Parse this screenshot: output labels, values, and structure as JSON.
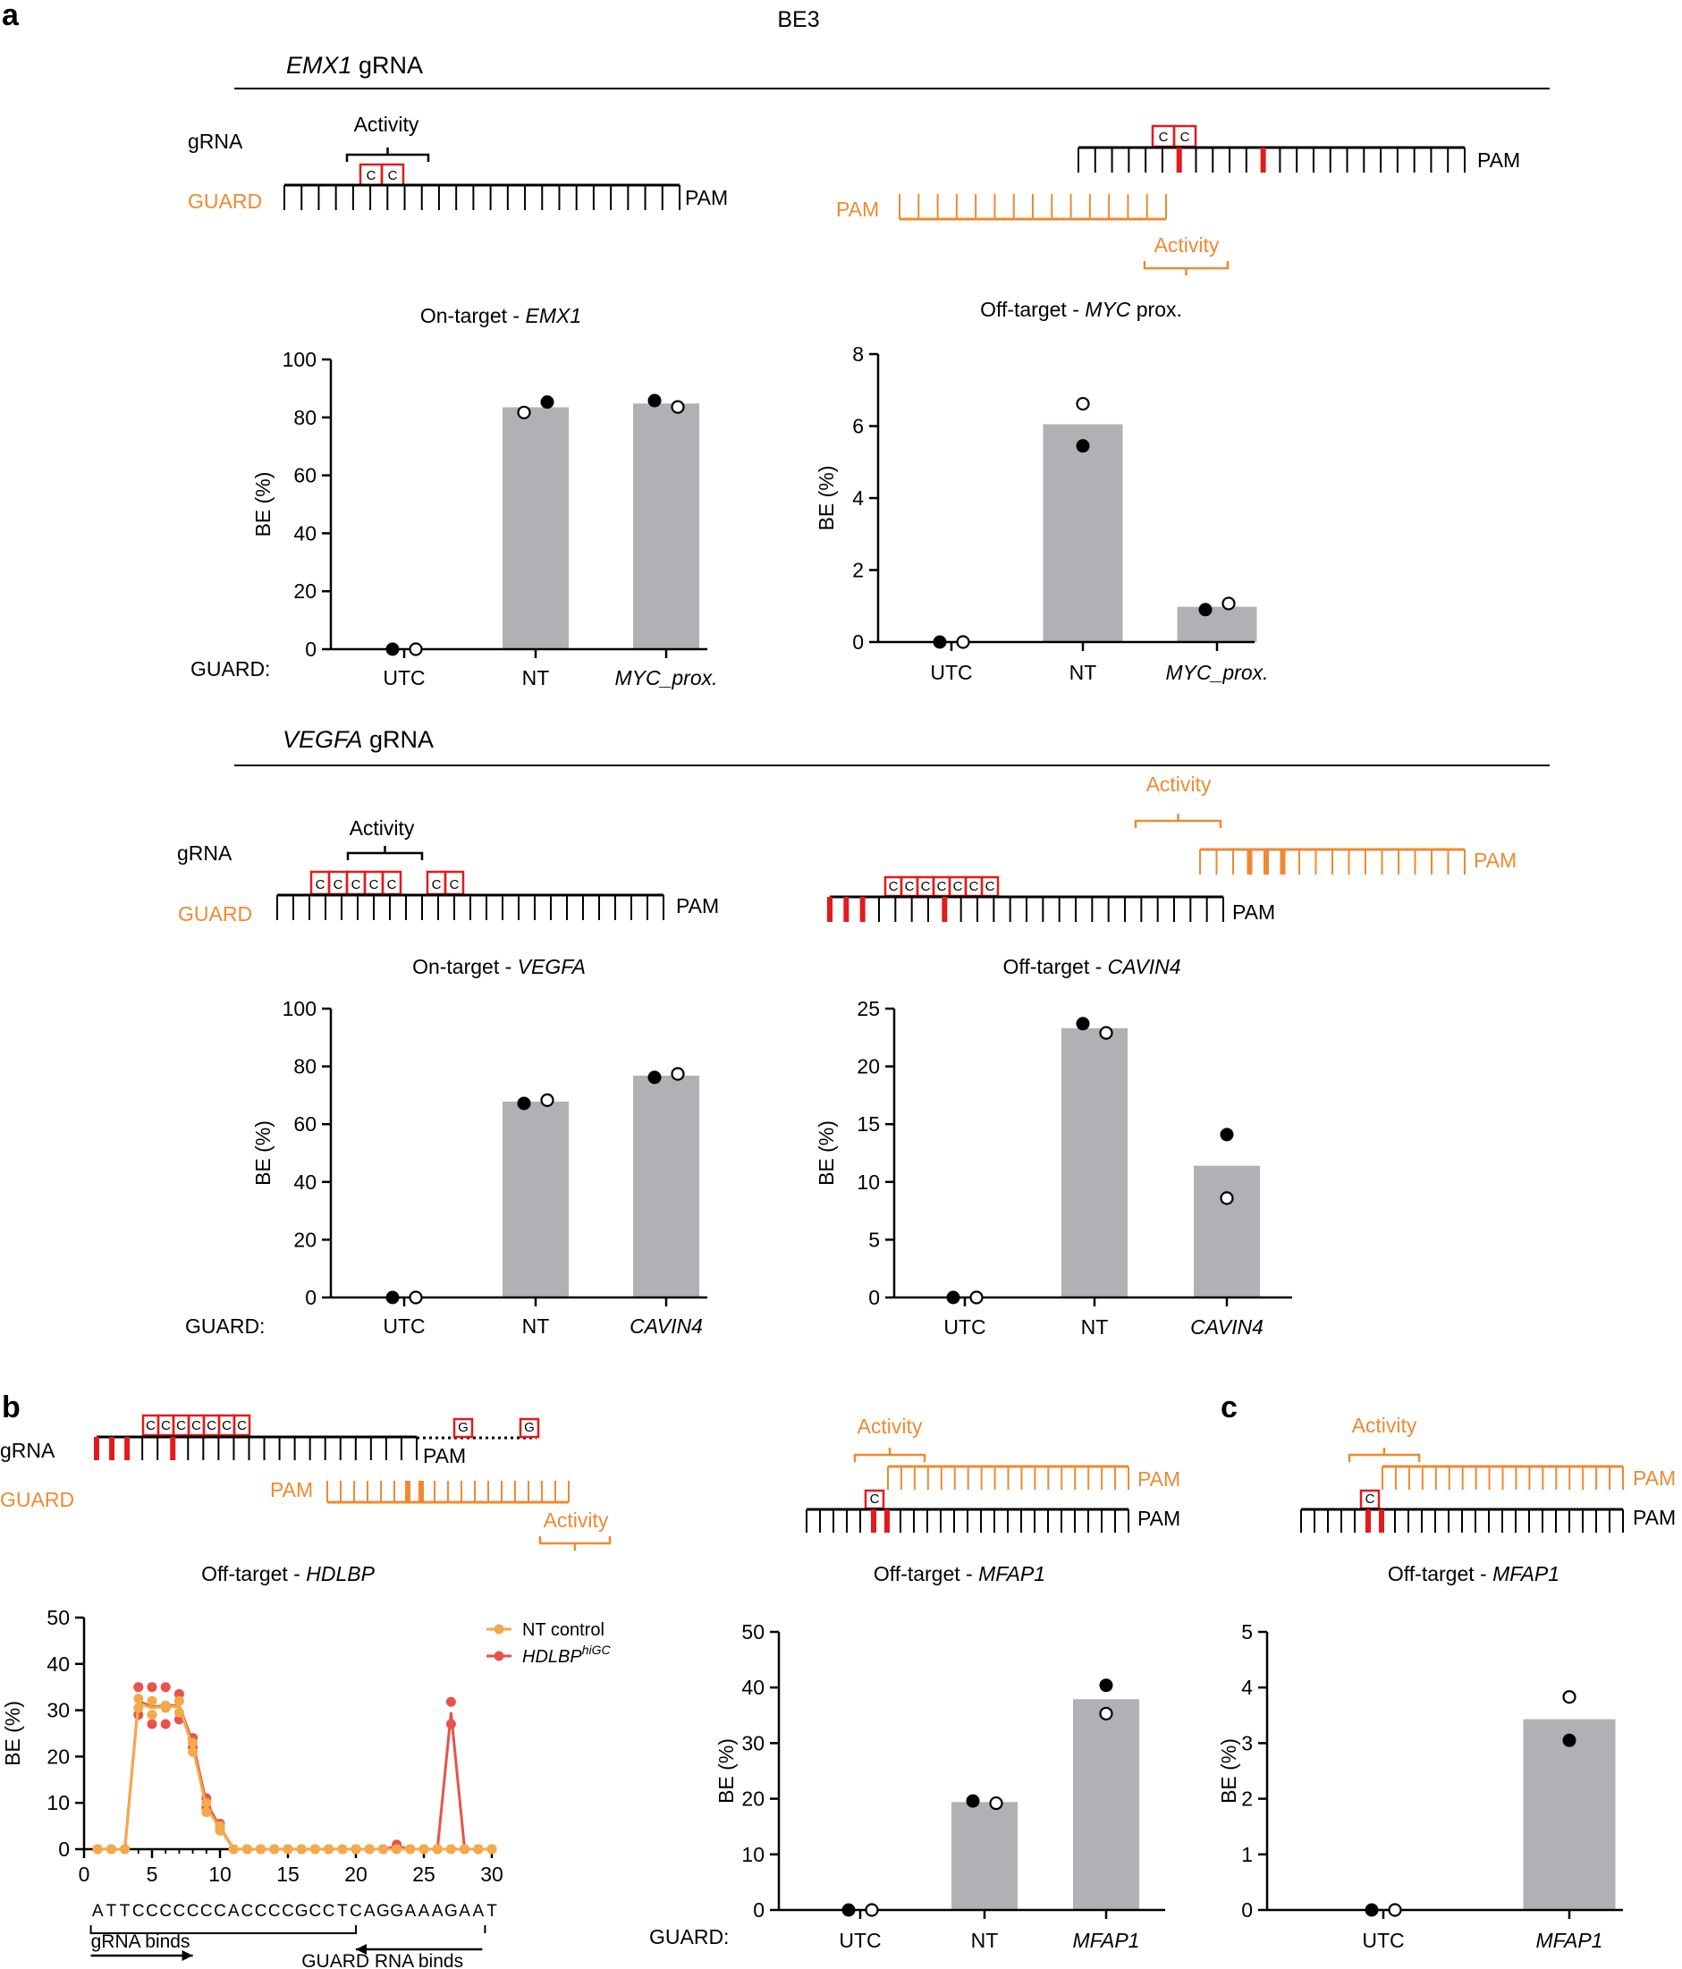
{
  "figure": {
    "top_title": "BE3",
    "panel_labels": {
      "a": "a",
      "b": "b",
      "c": "c"
    },
    "colors": {
      "black": "#000000",
      "red": "#e31a1c",
      "orange": "#ee8a33",
      "bar": "#b0b0b5",
      "nt_line": "#f4a94a",
      "hd_line": "#e8524a"
    }
  },
  "sections": {
    "emx1": {
      "gene": "EMX1",
      "suffix": " gRNA"
    },
    "vegfa": {
      "gene": "VEGFA",
      "suffix": " gRNA"
    }
  },
  "schematics": {
    "gRNA": "gRNA",
    "guard": "GUARD",
    "pam": "PAM",
    "activity": "Activity",
    "c": "C",
    "g": "G"
  },
  "chart_data": [
    {
      "id": "emx1_on",
      "type": "bar",
      "title_prefix": "On-target - ",
      "title_gene": "EMX1",
      "title_suffix": "",
      "ylabel": "BE (%)",
      "xgroup_label": "GUARD:",
      "categories": [
        "UTC",
        "NT",
        "MYC_prox."
      ],
      "category_italic": [
        false,
        false,
        true
      ],
      "values": [
        0,
        83.5,
        84.8
      ],
      "points_filled": [
        0,
        85.3,
        85.8
      ],
      "points_open": [
        0,
        81.7,
        83.6
      ],
      "ylim": [
        0,
        100
      ],
      "yticks": [
        0,
        20,
        40,
        60,
        80,
        100
      ],
      "ytick_labels": [
        "0",
        "20",
        "40",
        "60",
        "80",
        "100"
      ]
    },
    {
      "id": "myc_off",
      "type": "bar",
      "title_prefix": "Off-target - ",
      "title_gene": "MYC",
      "title_suffix": " prox.",
      "ylabel": "BE (%)",
      "xgroup_label": "",
      "categories": [
        "UTC",
        "NT",
        "MYC_prox."
      ],
      "category_italic": [
        false,
        false,
        true
      ],
      "values": [
        0,
        6.05,
        0.98
      ],
      "points_filled": [
        0,
        5.45,
        0.9
      ],
      "points_open": [
        0,
        6.62,
        1.07
      ],
      "ylim": [
        0,
        8
      ],
      "yticks": [
        0,
        2,
        4,
        6,
        8
      ],
      "ytick_labels": [
        "0",
        "2",
        "4",
        "6",
        "8"
      ]
    },
    {
      "id": "vegfa_on",
      "type": "bar",
      "title_prefix": "On-target - ",
      "title_gene": "VEGFA",
      "title_suffix": "",
      "ylabel": "BE (%)",
      "xgroup_label": "GUARD:",
      "categories": [
        "UTC",
        "NT",
        "CAVIN4"
      ],
      "category_italic": [
        false,
        false,
        true
      ],
      "values": [
        0,
        67.8,
        76.8
      ],
      "points_filled": [
        0,
        67.2,
        76.2
      ],
      "points_open": [
        0,
        68.3,
        77.4
      ],
      "ylim": [
        0,
        100
      ],
      "yticks": [
        0,
        20,
        40,
        60,
        80,
        100
      ],
      "ytick_labels": [
        "0",
        "20",
        "40",
        "60",
        "80",
        "100"
      ]
    },
    {
      "id": "cavin4_off",
      "type": "bar",
      "title_prefix": "Off-target - ",
      "title_gene": "CAVIN4",
      "title_suffix": "",
      "ylabel": "BE (%)",
      "xgroup_label": "",
      "categories": [
        "UTC",
        "NT",
        "CAVIN4"
      ],
      "category_italic": [
        false,
        false,
        true
      ],
      "values": [
        0,
        23.3,
        11.4
      ],
      "points_filled": [
        0,
        23.7,
        14.1
      ],
      "points_open": [
        0,
        22.9,
        8.6
      ],
      "ylim": [
        0,
        25
      ],
      "yticks": [
        0,
        5,
        10,
        15,
        20,
        25
      ],
      "ytick_labels": [
        "0",
        "5",
        "10",
        "15",
        "20",
        "25"
      ]
    },
    {
      "id": "hdlbp_off",
      "type": "line",
      "title_prefix": "Off-target - ",
      "title_gene": "HDLBP",
      "title_suffix": "",
      "ylabel": "BE (%)",
      "xlim": [
        0,
        30
      ],
      "xticks": [
        0,
        5,
        10,
        15,
        20,
        25,
        30
      ],
      "xtick_labels": [
        "0",
        "5",
        "10",
        "15",
        "20",
        "25",
        "30"
      ],
      "ylim": [
        0,
        50
      ],
      "yticks": [
        0,
        10,
        20,
        30,
        40,
        50
      ],
      "ytick_labels": [
        "0",
        "10",
        "20",
        "30",
        "40",
        "50"
      ],
      "sequence": "ATTCCCCCCCACCCCGCCTCAGGAAAGAAT",
      "gRNA_binds": "gRNA binds",
      "guard_binds": "GUARD RNA binds",
      "series": [
        {
          "name": "NT control",
          "name_base": "NT control",
          "name_sup": "",
          "x": [
            1,
            2,
            3,
            4,
            5,
            6,
            7,
            8,
            9,
            10,
            11,
            12,
            13,
            14,
            15,
            16,
            17,
            18,
            19,
            20,
            21,
            22,
            23,
            24,
            25,
            26,
            27,
            28,
            29,
            30
          ],
          "values": [
            0,
            0,
            0,
            31.5,
            30.5,
            30.8,
            30.8,
            22,
            9,
            4.5,
            0,
            0,
            0,
            0,
            0,
            0,
            0,
            0,
            0,
            0,
            0,
            0,
            0,
            0,
            0,
            0,
            0,
            0,
            0,
            0
          ],
          "replicates": [
            [
              0,
              0,
              0,
              32.5,
              32,
              31,
              32,
              23,
              10,
              5,
              0,
              0,
              0,
              0,
              0,
              0,
              0,
              0,
              0,
              0,
              0,
              0,
              0,
              0,
              0,
              0,
              0,
              0,
              0,
              0
            ],
            [
              0,
              0,
              0,
              30.5,
              29,
              30.5,
              29.5,
              21,
              8,
              4,
              0,
              0,
              0,
              0,
              0,
              0,
              0,
              0,
              0,
              0,
              0,
              0,
              0,
              0,
              0,
              0,
              0,
              0,
              0,
              0
            ]
          ]
        },
        {
          "name": "HDLBPhiGC",
          "name_base": "HDLBP",
          "name_sup": "hiGC",
          "x": [
            1,
            2,
            3,
            4,
            5,
            6,
            7,
            8,
            9,
            10,
            11,
            12,
            13,
            14,
            15,
            16,
            17,
            18,
            19,
            20,
            21,
            22,
            23,
            24,
            25,
            26,
            27,
            28,
            29,
            30
          ],
          "values": [
            0,
            0,
            0,
            32,
            30.7,
            31,
            31,
            23,
            10,
            4.8,
            0,
            0,
            0,
            0,
            0,
            0,
            0,
            0,
            0,
            0,
            0,
            0,
            0.6,
            0,
            0,
            0,
            29.5,
            0,
            0,
            0
          ],
          "replicates": [
            [
              0,
              0,
              0,
              35,
              35,
              35,
              33.5,
              24,
              11,
              5.5,
              0,
              0,
              0,
              0,
              0,
              0,
              0,
              0,
              0,
              0,
              0,
              0,
              1,
              0,
              0,
              0,
              31.8,
              0,
              0,
              0
            ],
            [
              0,
              0,
              0,
              29,
              27,
              27,
              28,
              22,
              9,
              4.2,
              0,
              0,
              0,
              0,
              0,
              0,
              0,
              0,
              0,
              0,
              0,
              0,
              0.2,
              0,
              0,
              0,
              27,
              0,
              0,
              0
            ]
          ]
        }
      ]
    },
    {
      "id": "mfap1_b",
      "type": "bar",
      "title_prefix": "Off-target - ",
      "title_gene": "MFAP1",
      "title_suffix": "",
      "ylabel": "BE (%)",
      "xgroup_label": "GUARD:",
      "categories": [
        "UTC",
        "NT",
        "MFAP1"
      ],
      "category_italic": [
        false,
        false,
        true
      ],
      "values": [
        0,
        19.4,
        37.9
      ],
      "points_filled": [
        0,
        19.6,
        40.4
      ],
      "points_open": [
        0,
        19.2,
        35.3
      ],
      "ylim": [
        0,
        50
      ],
      "yticks": [
        0,
        10,
        20,
        30,
        40,
        50
      ],
      "ytick_labels": [
        "0",
        "10",
        "20",
        "30",
        "40",
        "50"
      ]
    },
    {
      "id": "mfap1_c",
      "type": "bar",
      "title_prefix": "Off-target - ",
      "title_gene": "MFAP1",
      "title_suffix": "",
      "ylabel": "BE (%)",
      "xgroup_label": "",
      "categories": [
        "UTC",
        "MFAP1"
      ],
      "category_italic": [
        false,
        true
      ],
      "values": [
        0,
        3.43
      ],
      "points_filled": [
        0,
        3.05
      ],
      "points_open": [
        0,
        3.83
      ],
      "ylim": [
        0,
        5
      ],
      "yticks": [
        0,
        1,
        2,
        3,
        4,
        5
      ],
      "ytick_labels": [
        "0",
        "1",
        "2",
        "3",
        "4",
        "5"
      ]
    }
  ]
}
